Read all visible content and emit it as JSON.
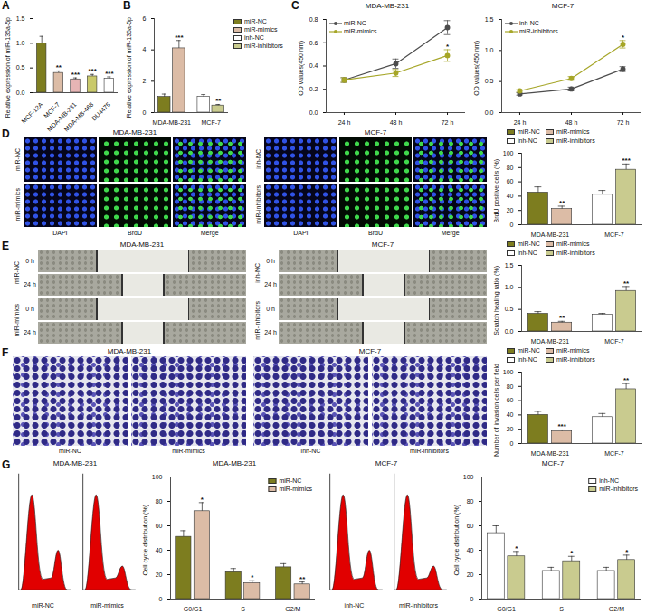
{
  "chart_data": [
    {
      "panel": "A",
      "type": "bar",
      "ylabel": "Relative expression of miR-135a-5p",
      "categories": [
        "MCF-12A",
        "MCF-7",
        "MDA-MB-231",
        "MDA-MB-468",
        "DU4475"
      ],
      "values": [
        1.0,
        0.4,
        0.27,
        0.33,
        0.28
      ],
      "errors": [
        0.14,
        0.04,
        0.03,
        0.04,
        0.04
      ],
      "annotations": [
        null,
        "**",
        "***",
        "***",
        "***"
      ],
      "colors": [
        "#7d7d1f",
        "#dcbca6",
        "#e7b5b5",
        "#c9c96a",
        "#ffffff"
      ],
      "ylim": [
        0,
        1.5
      ],
      "yticks": [
        {
          "value": 0,
          "label": "0.0"
        },
        {
          "value": 0.5,
          "label": "0.5"
        },
        {
          "value": 1,
          "label": "1.0"
        },
        {
          "value": 1.5,
          "label": "1.5"
        }
      ]
    },
    {
      "panel": "B",
      "type": "bar",
      "ylabel": "Relative expression of miR-135a-5p",
      "categories": [
        "MDA-MB-231",
        "MCF-7"
      ],
      "series": [
        {
          "name": "miR-NC",
          "color": "#7d7d1f",
          "values": [
            1.0,
            null
          ],
          "errors": [
            0.18,
            null
          ]
        },
        {
          "name": "miR-mimics",
          "color": "#dcbca6",
          "values": [
            4.1,
            null
          ],
          "errors": [
            0.5,
            null
          ],
          "annotations": [
            "***",
            null
          ]
        },
        {
          "name": "inh-NC",
          "color": "#ffffff",
          "values": [
            null,
            1.0
          ],
          "errors": [
            null,
            0.15
          ]
        },
        {
          "name": "miR-inhibitors",
          "color": "#c9cb8f",
          "values": [
            null,
            0.45
          ],
          "errors": [
            null,
            0.07
          ],
          "annotations": [
            null,
            "**"
          ]
        }
      ],
      "ylim": [
        0,
        6
      ],
      "yticks": [
        0,
        2,
        4,
        6
      ],
      "legend": "right"
    },
    {
      "panel": "C",
      "type": "line",
      "title": "MDA-MB-231",
      "ylabel": "OD values(450 nm)",
      "x": [
        "24 h",
        "48 h",
        "72 h"
      ],
      "series": [
        {
          "name": "miR-NC",
          "color": "#4d4d4d",
          "marker": "circle",
          "values": [
            0.28,
            0.42,
            0.73
          ],
          "errors": [
            0.02,
            0.04,
            0.06
          ]
        },
        {
          "name": "miR-mimics",
          "color": "#a6a628",
          "marker": "circle",
          "values": [
            0.28,
            0.34,
            0.49
          ],
          "errors": [
            0.02,
            0.03,
            0.05
          ],
          "annotations": [
            null,
            null,
            "*"
          ]
        }
      ],
      "ylim": [
        0,
        0.8
      ],
      "yticks": [
        {
          "value": 0,
          "label": "0.0"
        },
        {
          "value": 0.2,
          "label": "0.2"
        },
        {
          "value": 0.4,
          "label": "0.4"
        },
        {
          "value": 0.6,
          "label": "0.6"
        },
        {
          "value": 0.8,
          "label": "0.8"
        }
      ],
      "legend": "top-left"
    },
    {
      "type": "line",
      "title": "MCF-7",
      "ylabel": "OD values(450 nm)",
      "x": [
        "24 h",
        "48 h",
        "72 h"
      ],
      "series": [
        {
          "name": "inh-NC",
          "color": "#4d4d4d",
          "marker": "circle",
          "values": [
            0.3,
            0.38,
            0.7
          ],
          "errors": [
            0.02,
            0.03,
            0.04
          ]
        },
        {
          "name": "miR-inhibitors",
          "color": "#a6a628",
          "marker": "circle",
          "values": [
            0.35,
            0.55,
            1.1
          ],
          "errors": [
            0.02,
            0.03,
            0.06
          ],
          "annotations": [
            null,
            null,
            "*"
          ]
        }
      ],
      "ylim": [
        0,
        1.5
      ],
      "yticks": [
        {
          "value": 0,
          "label": "0.0"
        },
        {
          "value": 0.5,
          "label": "0.5"
        },
        {
          "value": 1,
          "label": "1.0"
        },
        {
          "value": 1.5,
          "label": "1.5"
        }
      ],
      "legend": "top-left"
    },
    {
      "type": "bar",
      "ylabel": "BrdU positive cells (%)",
      "categories": [
        "MDA-MB-231",
        "MCF-7"
      ],
      "series": [
        {
          "name": "miR-NC",
          "color": "#7d7d1f",
          "values": [
            45,
            null
          ],
          "errors": [
            8,
            null
          ]
        },
        {
          "name": "miR-mimics",
          "color": "#dcbca6",
          "values": [
            22,
            null
          ],
          "errors": [
            4,
            null
          ],
          "annotations": [
            "**",
            null
          ]
        },
        {
          "name": "inh-NC",
          "color": "#ffffff",
          "values": [
            null,
            42
          ],
          "errors": [
            null,
            6
          ]
        },
        {
          "name": "miR-inhibitors",
          "color": "#c9cb8f",
          "values": [
            null,
            77
          ],
          "errors": [
            null,
            8
          ],
          "annotations": [
            null,
            "***"
          ]
        }
      ],
      "ylim": [
        0,
        100
      ],
      "yticks": [
        0,
        20,
        40,
        60,
        80,
        100
      ],
      "legend": "top"
    },
    {
      "type": "bar",
      "ylabel": "Scratch healing ratio (%)",
      "categories": [
        "MDA-MB-231",
        "MCF-7"
      ],
      "series": [
        {
          "name": "miR-NC",
          "color": "#7d7d1f",
          "values": [
            0.4,
            null
          ],
          "errors": [
            0.05,
            null
          ]
        },
        {
          "name": "miR-mimics",
          "color": "#dcbca6",
          "values": [
            0.2,
            null
          ],
          "errors": [
            0.03,
            null
          ],
          "annotations": [
            "**",
            null
          ]
        },
        {
          "name": "inh-NC",
          "color": "#ffffff",
          "values": [
            null,
            0.38
          ],
          "errors": [
            null,
            0.03
          ]
        },
        {
          "name": "miR-inhibitors",
          "color": "#c9cb8f",
          "values": [
            null,
            0.92
          ],
          "errors": [
            null,
            0.1
          ],
          "annotations": [
            null,
            "**"
          ]
        }
      ],
      "ylim": [
        0,
        1.5
      ],
      "yticks": [
        {
          "value": 0,
          "label": "0.0"
        },
        {
          "value": 0.5,
          "label": "0.5"
        },
        {
          "value": 1,
          "label": "1.0"
        },
        {
          "value": 1.5,
          "label": "1.5"
        }
      ],
      "legend": "top"
    },
    {
      "type": "bar",
      "ylabel": "Number of invasion cells per field",
      "categories": [
        "MDA-MB-231",
        "MCF-7"
      ],
      "series": [
        {
          "name": "miR-NC",
          "color": "#7d7d1f",
          "values": [
            40,
            null
          ],
          "errors": [
            5,
            null
          ]
        },
        {
          "name": "miR-mimics",
          "color": "#dcbca6",
          "values": [
            17,
            null
          ],
          "errors": [
            2,
            null
          ],
          "annotations": [
            "***",
            null
          ]
        },
        {
          "name": "inh-NC",
          "color": "#ffffff",
          "values": [
            null,
            37
          ],
          "errors": [
            null,
            5
          ]
        },
        {
          "name": "miR-inhibitors",
          "color": "#c9cb8f",
          "values": [
            null,
            76
          ],
          "errors": [
            null,
            8
          ],
          "annotations": [
            null,
            "**"
          ]
        }
      ],
      "ylim": [
        0,
        100
      ],
      "yticks": [
        0,
        20,
        40,
        60,
        80,
        100
      ],
      "legend": "top"
    },
    {
      "type": "bar",
      "title": "MDA-MB-231",
      "ylabel": "Cell cycle distribution (%)",
      "categories": [
        "G0/G1",
        "S",
        "G2/M"
      ],
      "series": [
        {
          "name": "miR-NC",
          "color": "#7d7d1f",
          "values": [
            51,
            22,
            26
          ],
          "errors": [
            5,
            3,
            3
          ]
        },
        {
          "name": "miR-mimics",
          "color": "#dcbca6",
          "values": [
            72,
            13,
            12
          ],
          "errors": [
            7,
            2,
            2
          ],
          "annotations": [
            "*",
            "*",
            "**"
          ]
        }
      ],
      "ylim": [
        0,
        100
      ],
      "yticks": [
        0,
        20,
        40,
        60,
        80,
        100
      ],
      "legend": "top-right"
    },
    {
      "type": "bar",
      "title": "MCF-7",
      "ylabel": "Cell cycle distribution (%)",
      "categories": [
        "G0/G1",
        "S",
        "G2/M"
      ],
      "series": [
        {
          "name": "inh-NC",
          "color": "#ffffff",
          "values": [
            54,
            23,
            23
          ],
          "errors": [
            6,
            3,
            3
          ]
        },
        {
          "name": "miR-inhibitors",
          "color": "#c9cb8f",
          "values": [
            35,
            31,
            32
          ],
          "errors": [
            4,
            4,
            4
          ],
          "annotations": [
            "*",
            "*",
            "*"
          ]
        }
      ],
      "ylim": [
        0,
        100
      ],
      "yticks": [
        0,
        20,
        40,
        60,
        80,
        100
      ],
      "legend": "top-right"
    }
  ],
  "image_panels": [
    {
      "panel": "D",
      "groups": [
        {
          "title": "MDA-MB-231",
          "rows": [
            "miR-NC",
            "miR-mimics"
          ],
          "columns": [
            "DAPI",
            "BrdU",
            "Merge"
          ]
        },
        {
          "title": "MCF-7",
          "rows": [
            "inh-NC",
            "miR-inhibitors"
          ],
          "columns": [
            "DAPI",
            "BrdU",
            "Merge"
          ]
        }
      ]
    },
    {
      "panel": "E",
      "groups": [
        {
          "title": "MDA-MB-231",
          "rows": [
            "miR-NC",
            "miR-mimics"
          ],
          "times": [
            "0 h",
            "24 h"
          ]
        },
        {
          "title": "MCF-7",
          "rows": [
            "inh-NC",
            "miR-inhibitors"
          ],
          "times": [
            "0 h",
            "24 h"
          ]
        }
      ]
    },
    {
      "panel": "F",
      "groups": [
        {
          "title": "MDA-MB-231",
          "images": [
            "miR-NC",
            "miR-mimics"
          ]
        },
        {
          "title": "MCF-7",
          "images": [
            "inh-NC",
            "miR-inhibitors"
          ]
        }
      ]
    },
    {
      "panel": "G",
      "groups": [
        {
          "title": "MDA-MB-231",
          "images": [
            "miR-NC",
            "miR-mimics"
          ]
        },
        {
          "title": "MCF-7",
          "images": [
            "inh-NC",
            "miR-inhibitors"
          ]
        }
      ]
    }
  ]
}
